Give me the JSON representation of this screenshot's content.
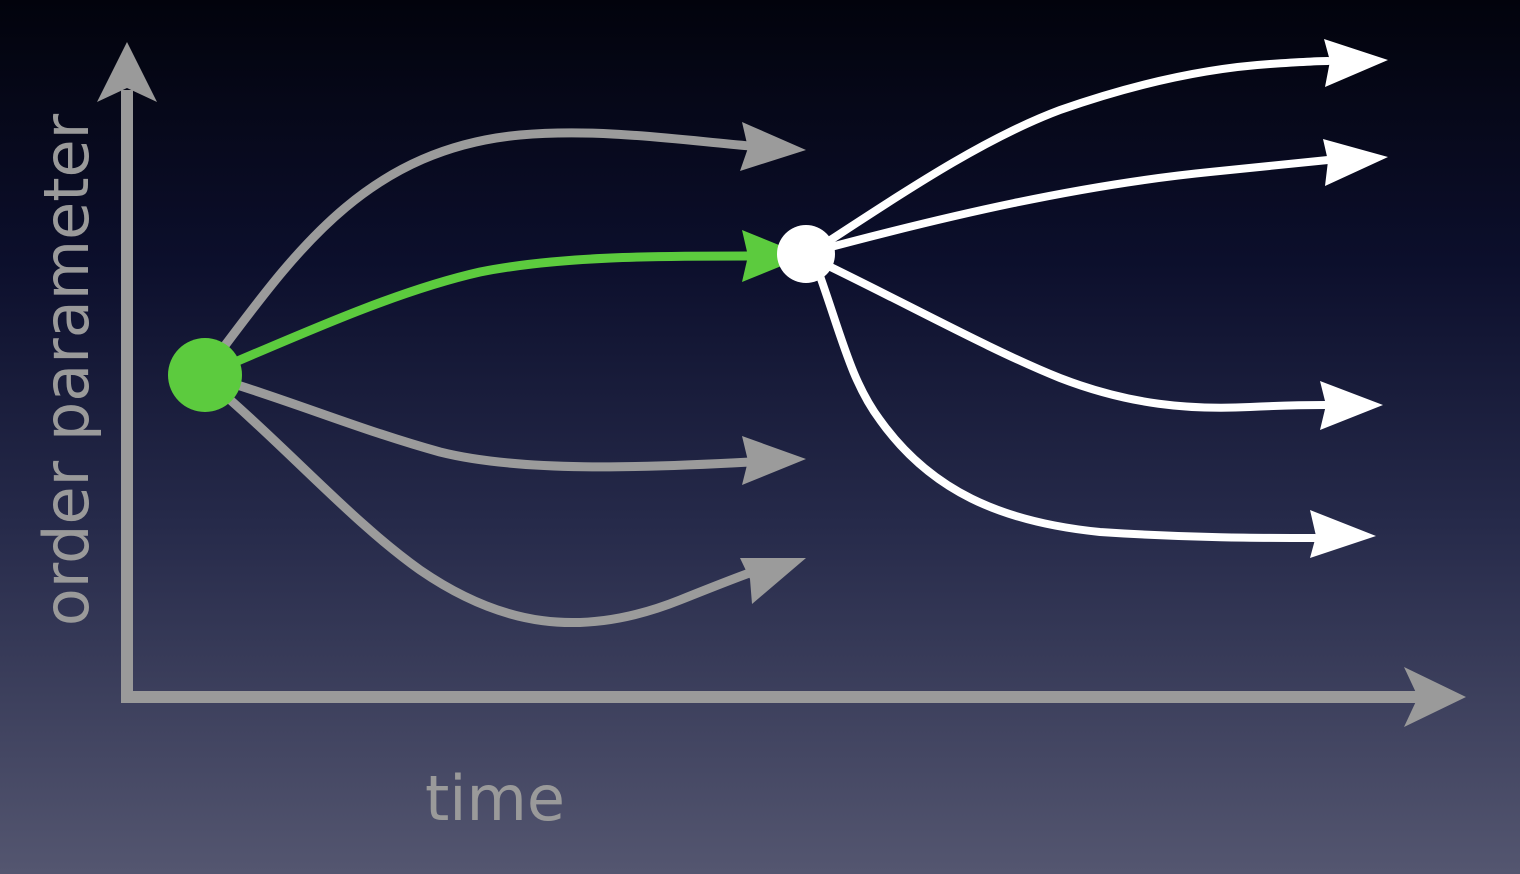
{
  "axes": {
    "x_label": "time",
    "y_label": "order parameter",
    "color": "#9a9a9a"
  },
  "nodes": [
    {
      "name": "start-node",
      "color": "#5ccb3e"
    },
    {
      "name": "branch-node",
      "color": "#ffffff"
    }
  ],
  "paths": {
    "gray_color": "#9b9b9b",
    "white_color": "#ffffff",
    "green_color": "#5ccb3e",
    "gray_count": 3,
    "white_count": 4,
    "highlighted_count": 1
  }
}
